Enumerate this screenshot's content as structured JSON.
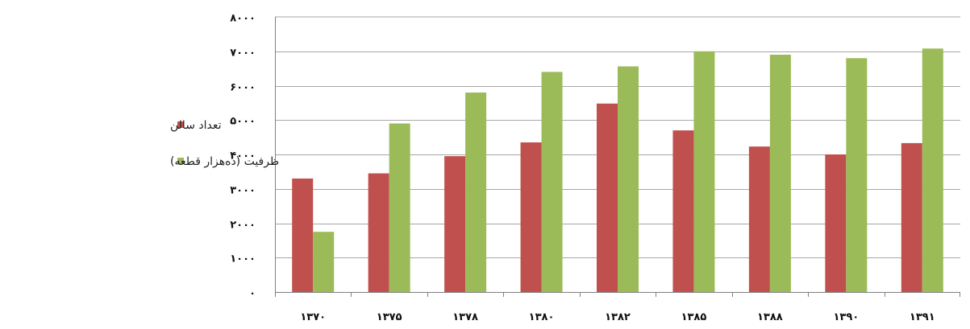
{
  "chart_data": {
    "type": "bar",
    "categories": [
      "۱۳۷۰",
      "۱۳۷۵",
      "۱۳۷۸",
      "۱۳۸۰",
      "۱۳۸۲",
      "۱۳۸۵",
      "۱۳۸۸",
      "۱۳۹۰",
      "۱۳۹۱"
    ],
    "series": [
      {
        "name": "تعداد سالن",
        "color": "#c0504d",
        "values": [
          3300,
          3450,
          3950,
          4350,
          5480,
          4700,
          4230,
          4000,
          4330
        ]
      },
      {
        "name": "ظرفیت (ده‌هزار قطعه)",
        "color": "#9bbb59",
        "values": [
          1750,
          4900,
          5800,
          6400,
          6560,
          7000,
          6900,
          6800,
          7080
        ]
      }
    ],
    "ylim": [
      0,
      8000
    ],
    "yticks": [
      0,
      1000,
      2000,
      3000,
      4000,
      5000,
      6000,
      7000,
      8000
    ],
    "ytick_labels": [
      "۰",
      "۱۰۰۰",
      "۲۰۰۰",
      "۳۰۰۰",
      "۴۰۰۰",
      "۵۰۰۰",
      "۶۰۰۰",
      "۷۰۰۰",
      "۸۰۰۰"
    ],
    "grid": true,
    "legend_position": "left",
    "title": "",
    "xlabel": "",
    "ylabel": ""
  }
}
